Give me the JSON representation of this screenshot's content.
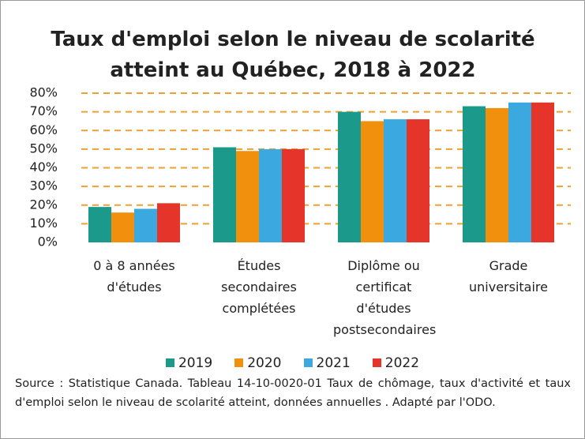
{
  "chart_data": {
    "type": "bar",
    "title": "Taux d'emploi selon le niveau de scolarité atteint au Québec, 2018 à 2022",
    "categories": [
      "0 à 8 années d'études",
      "Études secondaires complétées",
      "Diplôme ou certificat d'études postsecondaires",
      "Grade universitaire"
    ],
    "series": [
      {
        "name": "2019",
        "color": "#1b9a8b",
        "values": [
          19,
          51,
          70,
          73
        ]
      },
      {
        "name": "2020",
        "color": "#f0900c",
        "values": [
          16,
          49,
          65,
          72
        ]
      },
      {
        "name": "2021",
        "color": "#3ba9e0",
        "values": [
          18,
          50,
          66,
          75
        ]
      },
      {
        "name": "2022",
        "color": "#e5352b",
        "values": [
          21,
          50,
          66,
          75
        ]
      }
    ],
    "ylim": [
      0,
      80
    ],
    "yticks": [
      {
        "value": 0,
        "label": "0%"
      },
      {
        "value": 10,
        "label": "10%"
      },
      {
        "value": 20,
        "label": "20%"
      },
      {
        "value": 30,
        "label": "30%"
      },
      {
        "value": 40,
        "label": "40%"
      },
      {
        "value": 50,
        "label": "50%"
      },
      {
        "value": 60,
        "label": "60%"
      },
      {
        "value": 70,
        "label": "70%"
      },
      {
        "value": 80,
        "label": "80%"
      }
    ],
    "grid": true,
    "grid_color": "#f0a030",
    "legend": "bottom",
    "source": "Source : Statistique Canada. Tableau 14-10-0020-01  Taux de chômage, taux d'activité et taux d'emploi selon le niveau de scolarité atteint, données annuelles . Adapté par l'ODO."
  }
}
